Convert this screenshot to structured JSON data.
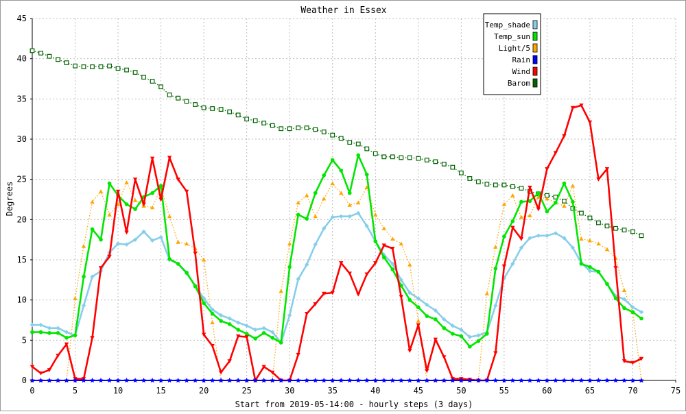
{
  "chart_data": {
    "type": "line",
    "title": "Weather in Essex",
    "xlabel": "Start from 2019-05-14:00 - hourly steps (3 days)",
    "ylabel": "Degrees",
    "xlim": [
      0,
      75
    ],
    "ylim": [
      0,
      45
    ],
    "xticks": [
      0,
      5,
      10,
      15,
      20,
      25,
      30,
      35,
      40,
      45,
      50,
      55,
      60,
      65,
      70,
      75
    ],
    "yticks": [
      0,
      5,
      10,
      15,
      20,
      25,
      30,
      35,
      40,
      45
    ],
    "grid": true,
    "legend_position": "top-right",
    "series": [
      {
        "name": "Temp_shade",
        "color": "#87ceeb",
        "values": [
          6.9,
          6.9,
          6.5,
          6.5,
          6.0,
          5.6,
          9.3,
          12.9,
          13.6,
          15.9,
          17.0,
          16.9,
          17.5,
          18.5,
          17.4,
          17.8,
          15.0,
          14.5,
          13.3,
          11.8,
          10.2,
          8.8,
          8.1,
          7.7,
          7.2,
          6.8,
          6.3,
          6.5,
          6.0,
          4.7,
          8.1,
          12.6,
          14.4,
          16.9,
          18.9,
          20.3,
          20.4,
          20.4,
          20.8,
          19.2,
          17.3,
          15.6,
          14.5,
          12.5,
          10.9,
          10.2,
          9.4,
          8.7,
          7.6,
          6.8,
          6.3,
          5.4,
          5.6,
          6.0,
          9.3,
          12.7,
          14.5,
          16.5,
          17.7,
          18.0,
          18.0,
          18.3,
          17.7,
          16.5,
          14.6,
          13.6,
          13.5,
          12.0,
          10.5,
          10.1,
          9.1,
          8.5
        ],
        "marker": "diamond",
        "line": "solid"
      },
      {
        "name": "Temp_sun",
        "color": "#00e600",
        "values": [
          6.0,
          6.0,
          5.9,
          5.9,
          5.3,
          5.6,
          12.9,
          18.8,
          17.5,
          24.5,
          23.0,
          21.9,
          21.3,
          22.8,
          23.3,
          24.2,
          15.1,
          14.5,
          13.4,
          11.7,
          9.6,
          8.3,
          7.4,
          7.0,
          6.3,
          5.8,
          5.2,
          5.9,
          5.3,
          4.7,
          14.1,
          20.6,
          20.1,
          23.3,
          25.5,
          27.4,
          26.1,
          23.3,
          28.0,
          25.6,
          17.3,
          15.3,
          13.8,
          11.8,
          10.0,
          9.1,
          8.0,
          7.6,
          6.5,
          5.8,
          5.5,
          4.2,
          4.9,
          5.8,
          13.9,
          17.9,
          19.8,
          22.2,
          22.3,
          23.3,
          21.0,
          22.1,
          24.5,
          22.2,
          14.5,
          14.1,
          13.5,
          12.0,
          10.2,
          9.0,
          8.5,
          7.7
        ],
        "marker": "circle",
        "line": "solid"
      },
      {
        "name": "Light/5",
        "color": "#ffa500",
        "values": [
          0.0,
          0.0,
          0.0,
          0.0,
          0.0,
          10.2,
          16.7,
          22.2,
          23.5,
          20.6,
          21.9,
          24.6,
          22.4,
          21.7,
          21.5,
          24.0,
          20.4,
          17.2,
          17.0,
          16.4,
          15.0,
          7.2,
          0.0,
          0.0,
          0.0,
          0.0,
          0.0,
          0.0,
          0.0,
          11.1,
          17.0,
          22.1,
          23.0,
          20.4,
          22.6,
          24.5,
          23.3,
          21.8,
          22.1,
          24.0,
          20.6,
          18.9,
          17.6,
          17.0,
          14.4,
          7.4,
          0.0,
          0.0,
          0.0,
          0.0,
          0.0,
          0.0,
          0.0,
          10.8,
          16.6,
          21.9,
          23.0,
          20.3,
          20.5,
          22.8,
          22.6,
          22.1,
          21.7,
          24.2,
          17.6,
          17.4,
          17.0,
          16.3,
          15.2,
          11.2,
          8.5,
          0.0
        ],
        "marker": "triangle-up",
        "line": "dotted"
      },
      {
        "name": "Rain",
        "color": "#0000ff",
        "values": [
          0,
          0,
          0,
          0,
          0,
          0,
          0,
          0,
          0,
          0,
          0,
          0,
          0,
          0,
          0,
          0,
          0,
          0,
          0,
          0,
          0,
          0,
          0,
          0,
          0,
          0,
          0,
          0,
          0,
          0,
          0,
          0,
          0,
          0,
          0,
          0,
          0,
          0,
          0,
          0,
          0,
          0,
          0,
          0,
          0,
          0,
          0,
          0,
          0,
          0,
          0,
          0,
          0,
          0,
          0,
          0,
          0,
          0,
          0,
          0,
          0,
          0,
          0,
          0,
          0,
          0,
          0,
          0,
          0,
          0,
          0,
          0
        ],
        "marker": "star",
        "line": "solid"
      },
      {
        "name": "Wind",
        "color": "#ff0000",
        "values": [
          1.7,
          0.9,
          1.3,
          3.1,
          4.5,
          0.2,
          0.2,
          5.3,
          14.0,
          15.4,
          23.5,
          18.4,
          25.0,
          21.9,
          27.6,
          22.5,
          27.7,
          25.0,
          23.5,
          15.8,
          5.7,
          4.3,
          1.0,
          2.4,
          5.5,
          5.4,
          0.0,
          1.7,
          1.0,
          0.0,
          0.0,
          3.2,
          8.3,
          9.5,
          10.8,
          10.9,
          14.6,
          13.3,
          10.7,
          13.2,
          14.6,
          16.8,
          16.4,
          10.4,
          3.7,
          6.9,
          1.2,
          5.1,
          2.9,
          0.2,
          0.2,
          0.1,
          0.0,
          0.0,
          3.4,
          14.2,
          19.0,
          17.6,
          24.0,
          21.3,
          26.3,
          28.3,
          30.4,
          33.9,
          34.2,
          32.1,
          25.0,
          26.3,
          14.0,
          2.4,
          2.2,
          2.7
        ],
        "marker": "triangle-down",
        "line": "solid"
      },
      {
        "name": "Barom",
        "color": "#006400",
        "values": [
          41.0,
          40.7,
          40.3,
          39.9,
          39.5,
          39.1,
          39.0,
          39.0,
          39.0,
          39.1,
          38.8,
          38.6,
          38.3,
          37.7,
          37.2,
          36.5,
          35.5,
          35.1,
          34.7,
          34.3,
          33.9,
          33.8,
          33.7,
          33.4,
          33.0,
          32.5,
          32.3,
          32.0,
          31.7,
          31.3,
          31.3,
          31.4,
          31.4,
          31.2,
          30.9,
          30.5,
          30.1,
          29.6,
          29.4,
          28.8,
          28.2,
          27.8,
          27.8,
          27.7,
          27.7,
          27.6,
          27.4,
          27.2,
          26.9,
          26.5,
          25.8,
          25.1,
          24.7,
          24.4,
          24.3,
          24.3,
          24.1,
          23.9,
          23.5,
          23.2,
          23.0,
          22.8,
          22.3,
          21.4,
          20.8,
          20.2,
          19.6,
          19.2,
          18.9,
          18.7,
          18.5,
          18.0
        ],
        "marker": "square",
        "line": "dotted"
      }
    ]
  }
}
